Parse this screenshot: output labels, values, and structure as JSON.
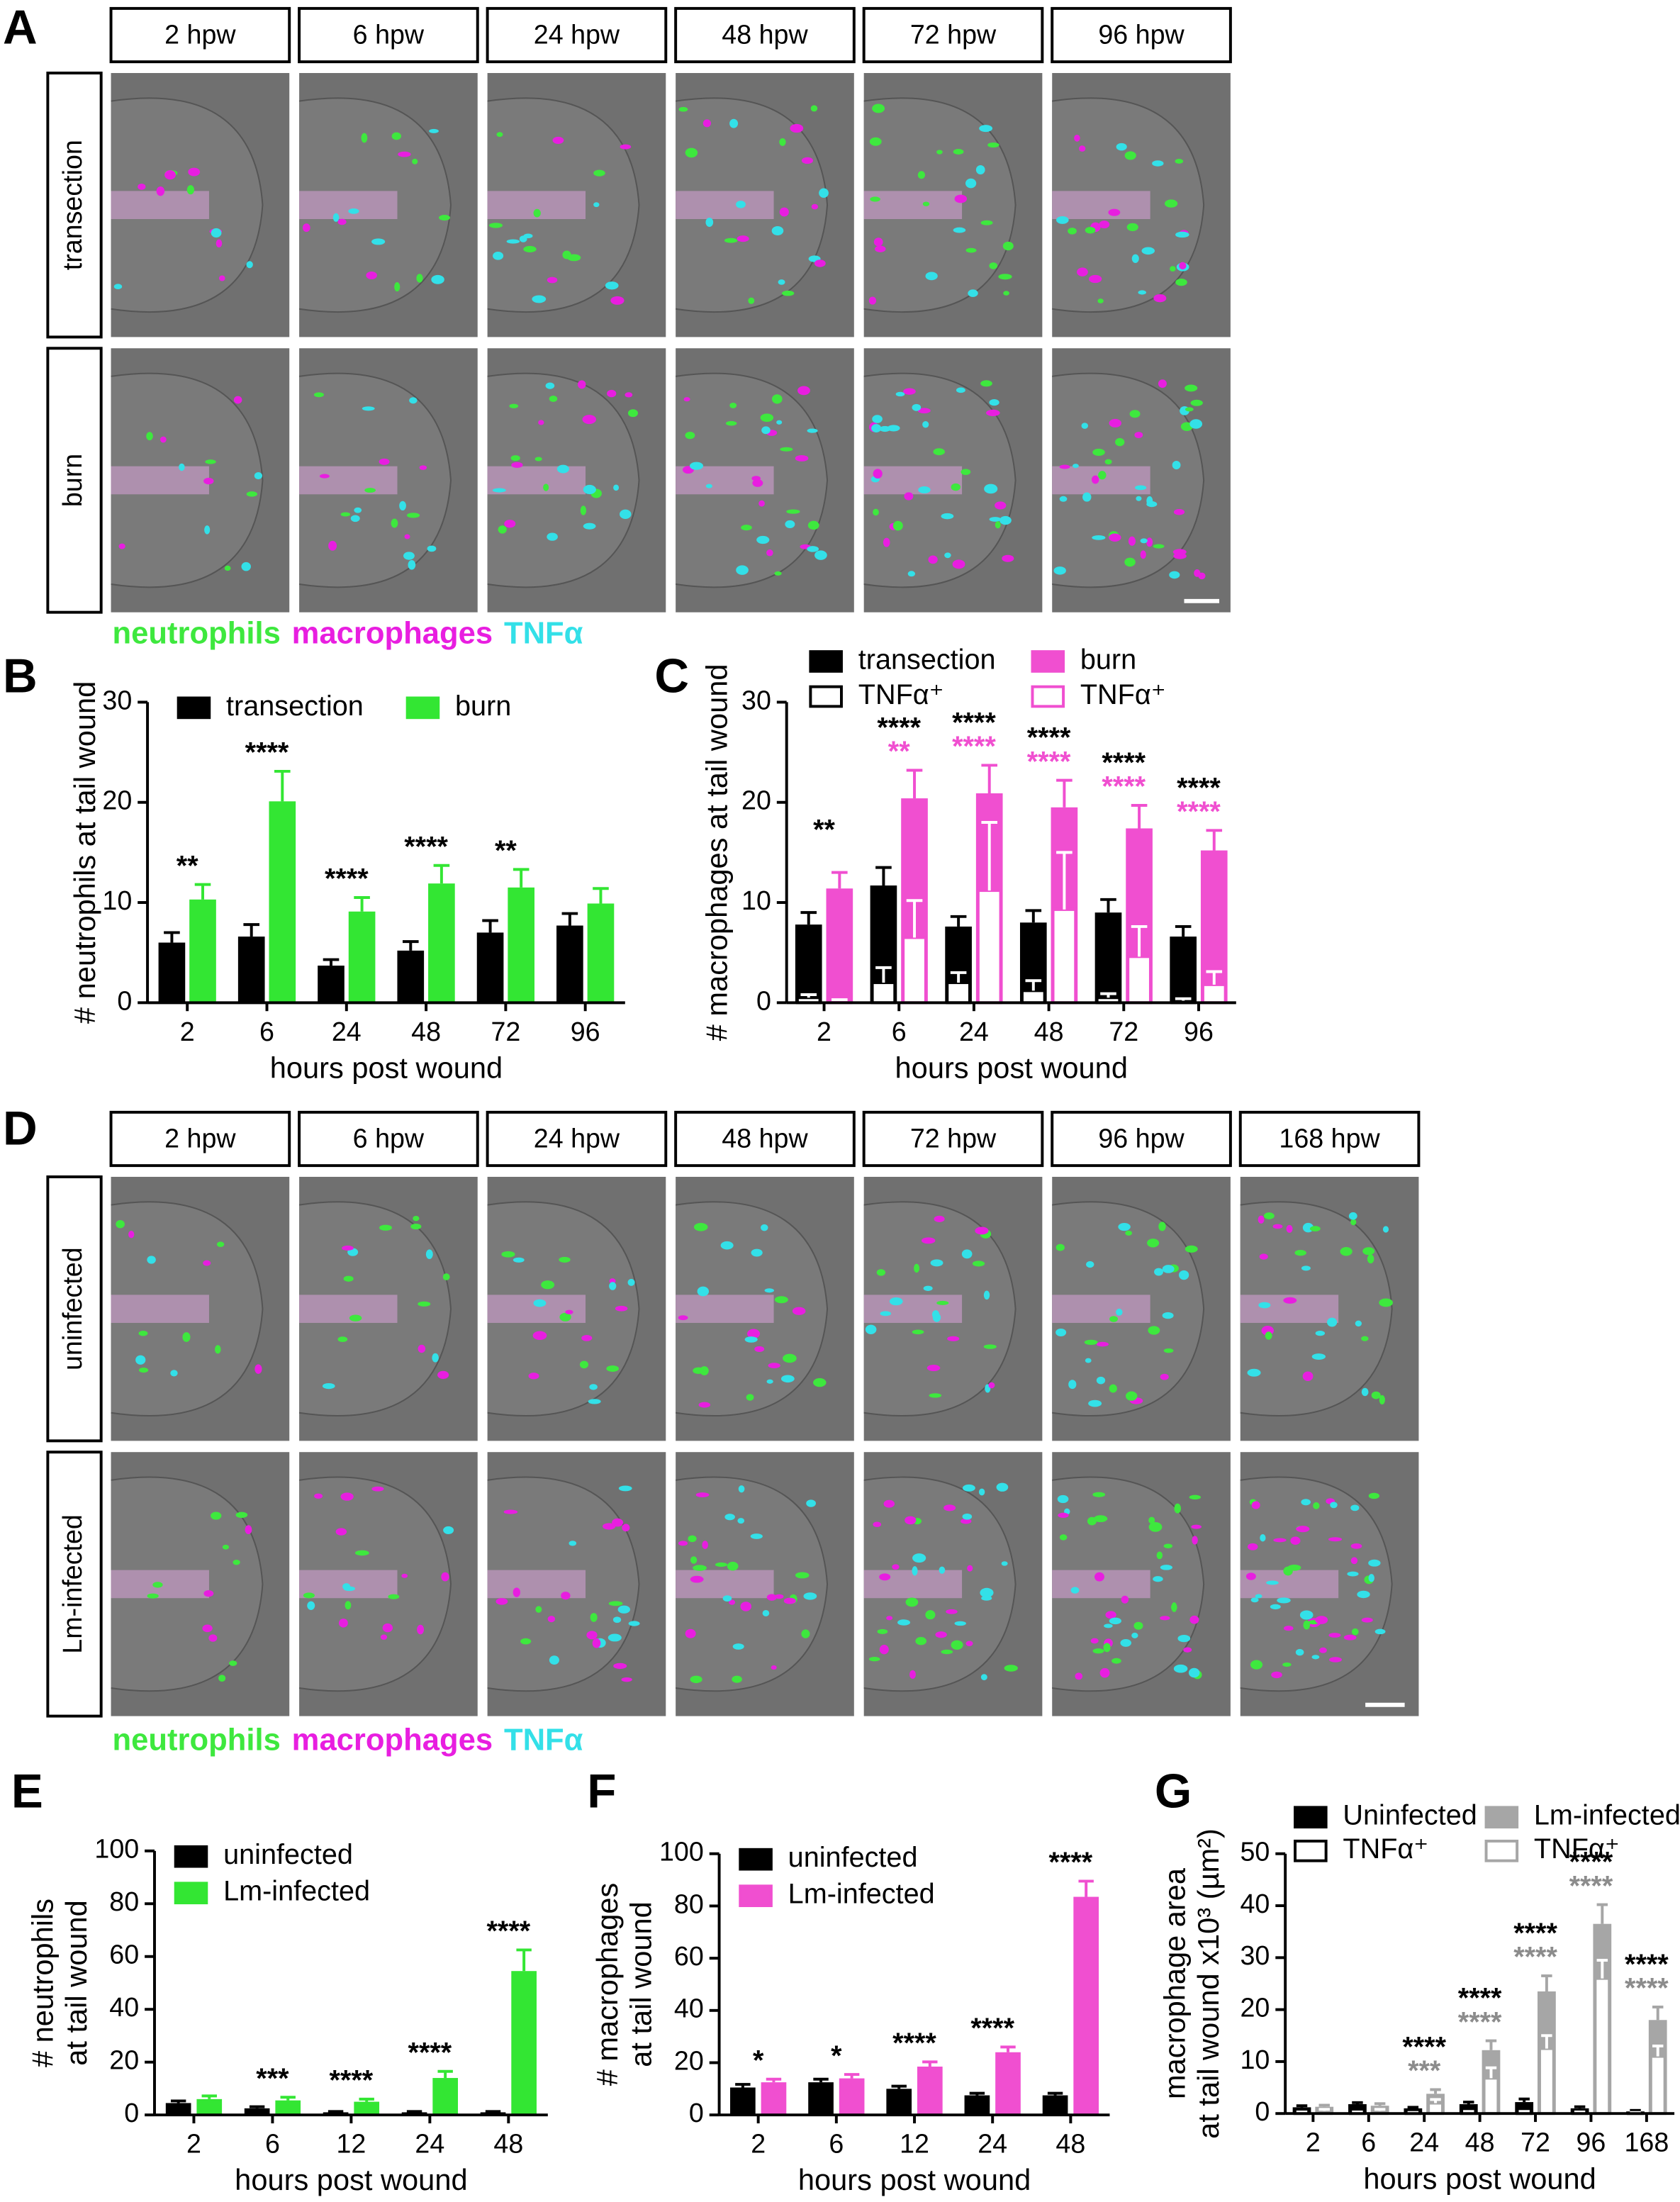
{
  "figures": [
    {
      "label": "A",
      "columns": [
        "2 hpw",
        "6 hpw",
        "24 hpw",
        "48 hpw",
        "72 hpw",
        "96 hpw"
      ],
      "rows": [
        "transection",
        "burn"
      ],
      "stains": [
        {
          "name": "neutrophils",
          "color": "#3ee83e"
        },
        {
          "name": "macrophages",
          "color": "#e81ee0"
        },
        {
          "name": "TNFα",
          "color": "#33e0e8"
        }
      ]
    },
    {
      "label": "D",
      "columns": [
        "2 hpw",
        "6 hpw",
        "24 hpw",
        "48 hpw",
        "72 hpw",
        "96 hpw",
        "168 hpw"
      ],
      "rows": [
        "uninfected",
        "Lm-infected"
      ],
      "stains": [
        {
          "name": "neutrophils",
          "color": "#3ee83e"
        },
        {
          "name": "macrophages",
          "color": "#e81ee0"
        },
        {
          "name": "TNFα",
          "color": "#33e0e8"
        }
      ]
    }
  ],
  "chart_data": [
    {
      "type": "bar",
      "label": "B",
      "ylabel": "# neutrophils at tail wound",
      "xlabel": "hours post wound",
      "categories": [
        "2",
        "6",
        "24",
        "48",
        "72",
        "96"
      ],
      "ylim": [
        0,
        30
      ],
      "yticks": [
        0,
        10,
        20,
        30
      ],
      "series": [
        {
          "name": "transection",
          "color": "#000000",
          "fill": "solid",
          "slot": 0,
          "values": [
            6,
            6.6,
            3.7,
            5.2,
            7,
            7.7
          ],
          "errors": [
            1,
            1.2,
            0.6,
            0.9,
            1.2,
            1.2
          ]
        },
        {
          "name": "burn",
          "color": "#33e633",
          "fill": "solid",
          "slot": 1,
          "values": [
            10.3,
            20.1,
            9.1,
            11.9,
            11.5,
            9.9
          ],
          "errors": [
            1.5,
            3,
            1.4,
            1.8,
            1.8,
            1.5
          ]
        }
      ],
      "annotations": [
        {
          "color": "#000000",
          "labels": [
            "**",
            "****",
            "****",
            "****",
            "**",
            null
          ]
        }
      ]
    },
    {
      "type": "bar",
      "label": "C",
      "ylabel": "# macrophages at tail wound",
      "xlabel": "hours post wound",
      "categories": [
        "2",
        "6",
        "24",
        "48",
        "72",
        "96"
      ],
      "ylim": [
        0,
        30
      ],
      "yticks": [
        0,
        10,
        20,
        30
      ],
      "series": [
        {
          "name": "transection",
          "color": "#000000",
          "fill": "solid",
          "slot": 0,
          "values": [
            7.8,
            11.7,
            7.6,
            8,
            9,
            6.6
          ],
          "errors": [
            1.2,
            1.8,
            1,
            1.2,
            1.3,
            1
          ]
        },
        {
          "name": "TNFα⁺",
          "color": "#000000",
          "fill": "open",
          "slot": 0,
          "values": [
            0.5,
            2,
            2,
            1.2,
            0.5,
            0.2
          ],
          "errors": [
            0.3,
            1.5,
            1,
            1,
            0.4,
            0.2
          ]
        },
        {
          "name": "burn",
          "color": "#f04fd0",
          "fill": "solid",
          "slot": 1,
          "values": [
            11.4,
            20.4,
            20.9,
            19.5,
            17.4,
            15.2
          ],
          "errors": [
            1.6,
            2.8,
            2.8,
            2.7,
            2.3,
            2
          ]
        },
        {
          "name": "TNFα⁺",
          "color": "#f04fd0",
          "fill": "open",
          "slot": 1,
          "values": [
            0.2,
            6.5,
            11.2,
            9.3,
            4.6,
            1.8
          ],
          "errors": [
            0.1,
            3.7,
            6.8,
            5.7,
            3,
            1.3
          ]
        }
      ],
      "annotations": [
        {
          "color": "#000000",
          "labels": [
            "**",
            "****",
            "****",
            "****",
            "****",
            "****"
          ]
        },
        {
          "color": "#f04fd0",
          "labels": [
            null,
            "**",
            "****",
            "****",
            "****",
            "****"
          ]
        }
      ]
    },
    {
      "type": "bar",
      "label": "E",
      "ylabel": [
        "# neutrophils",
        "at tail wound"
      ],
      "xlabel": "hours post wound",
      "categories": [
        "2",
        "6",
        "12",
        "24",
        "48"
      ],
      "ylim": [
        0,
        100
      ],
      "yticks": [
        0,
        20,
        40,
        60,
        80,
        100
      ],
      "series": [
        {
          "name": "uninfected",
          "color": "#000000",
          "fill": "solid",
          "slot": 0,
          "values": [
            4.5,
            2.5,
            1,
            1,
            1
          ],
          "errors": [
            0.8,
            0.6,
            0.3,
            0.3,
            0.3
          ]
        },
        {
          "name": "Lm-infected",
          "color": "#33e633",
          "fill": "solid",
          "slot": 1,
          "values": [
            6,
            5.5,
            5,
            14,
            54.5
          ],
          "errors": [
            1.2,
            1.2,
            1,
            2.5,
            8
          ]
        }
      ],
      "annotations": [
        {
          "color": "#000000",
          "labels": [
            null,
            "***",
            "****",
            "****",
            "****"
          ]
        }
      ]
    },
    {
      "type": "bar",
      "label": "F",
      "ylabel": [
        "# macrophages",
        "at tail wound"
      ],
      "xlabel": "hours post wound",
      "categories": [
        "2",
        "6",
        "12",
        "24",
        "48"
      ],
      "ylim": [
        0,
        100
      ],
      "yticks": [
        0,
        20,
        40,
        60,
        80,
        100
      ],
      "series": [
        {
          "name": "uninfected",
          "color": "#000000",
          "fill": "solid",
          "slot": 0,
          "values": [
            10.5,
            12.5,
            10,
            7.5,
            7.5
          ],
          "errors": [
            1.2,
            1.2,
            1,
            0.8,
            0.8
          ]
        },
        {
          "name": "Lm-infected",
          "color": "#f04fd0",
          "fill": "solid",
          "slot": 1,
          "values": [
            12.5,
            14,
            18.5,
            24,
            83.5
          ],
          "errors": [
            1.2,
            1.5,
            1.8,
            2,
            6
          ]
        }
      ],
      "annotations": [
        {
          "color": "#000000",
          "labels": [
            "*",
            "*",
            "****",
            "****",
            "****"
          ]
        }
      ]
    },
    {
      "type": "bar",
      "label": "G",
      "ylabel": [
        "macrophage area",
        "at tail wound x10³ (µm²)"
      ],
      "xlabel": "hours post wound",
      "categories": [
        "2",
        "6",
        "24",
        "48",
        "72",
        "96",
        "168"
      ],
      "ylim": [
        0,
        50
      ],
      "yticks": [
        0,
        10,
        20,
        30,
        40,
        50
      ],
      "series": [
        {
          "name": "Uninfected",
          "color": "#000000",
          "fill": "solid",
          "slot": 0,
          "values": [
            1.2,
            1.8,
            1,
            1.8,
            2.2,
            1,
            0.4
          ],
          "errors": [
            0.3,
            0.3,
            0.2,
            0.4,
            0.6,
            0.3,
            0.2
          ]
        },
        {
          "name": "TNFα⁺",
          "color": "#000000",
          "fill": "open",
          "slot": 0,
          "values": [
            0.2,
            0.2,
            0.1,
            0.3,
            0.3,
            0.2,
            0.1
          ],
          "errors": [
            0.1,
            0.1,
            0.1,
            0.1,
            0.1,
            0.1,
            0.1
          ]
        },
        {
          "name": "Lm-infected",
          "color": "#a6a6a6",
          "fill": "solid",
          "slot": 1,
          "values": [
            1.3,
            1.5,
            3.8,
            12.2,
            23.5,
            36.5,
            18
          ],
          "errors": [
            0.3,
            0.4,
            0.8,
            1.8,
            3,
            3.7,
            2.5
          ]
        },
        {
          "name": "TNFα⁺",
          "color": "#a6a6a6",
          "fill": "open",
          "slot": 1,
          "values": [
            0.5,
            0.5,
            2,
            6.8,
            12.5,
            26,
            11
          ],
          "errors": [
            0.3,
            0.3,
            0.7,
            2,
            2.5,
            3.5,
            2
          ]
        }
      ],
      "annotations": [
        {
          "color": "#000000",
          "labels": [
            null,
            null,
            "****",
            "****",
            "****",
            "****",
            "****"
          ]
        },
        {
          "color": "#8c8c8c",
          "labels": [
            null,
            null,
            "***",
            "****",
            "****",
            "****",
            "****"
          ]
        }
      ]
    }
  ]
}
